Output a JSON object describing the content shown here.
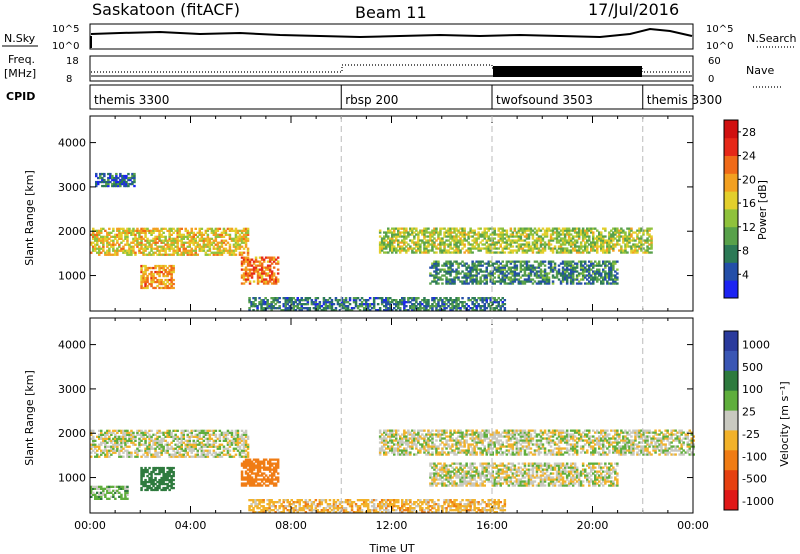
{
  "header": {
    "radar": "Saskatoon (fitACF)",
    "beam": "Beam 11",
    "date": "17/Jul/2016"
  },
  "noise_panel": {
    "left_label": "N.Sky",
    "left_ticks": [
      "10^5",
      "10^0"
    ],
    "right_ticks": [
      "10^5",
      "10^0"
    ],
    "right_label": "N.Search"
  },
  "freq_panel": {
    "left_label_1": "Freq.",
    "left_label_2": "[MHz]",
    "left_ticks": [
      "18",
      "8"
    ],
    "right_ticks": [
      "60",
      "0"
    ],
    "right_label": "Nave"
  },
  "cpid": {
    "label": "CPID",
    "modes": [
      {
        "name": "themis 3300",
        "start_hour": 0
      },
      {
        "name": "rbsp 200",
        "start_hour": 10
      },
      {
        "name": "twofsound 3503",
        "start_hour": 16
      },
      {
        "name": "themis 3300",
        "start_hour": 22
      }
    ]
  },
  "colors": {
    "velocity_scale": [
      "#2a3a9c",
      "#3a56b4",
      "#2e7a3e",
      "#5fae3c",
      "#c9c9c0",
      "#f2b22a",
      "#f07c14",
      "#e64010",
      "#e01818"
    ]
  },
  "chart_data": [
    {
      "type": "heatmap",
      "title": "",
      "xlabel": "",
      "ylabel": "Slant Range [km]",
      "xlim": [
        0,
        24
      ],
      "ylim": [
        200,
        4600
      ],
      "y_ticks": [
        "1000",
        "2000",
        "3000",
        "4000"
      ],
      "colorbar": {
        "label": "Power [dB]",
        "ticks": [
          "4",
          "8",
          "12",
          "16",
          "20",
          "24",
          "28"
        ],
        "range": [
          0,
          30
        ],
        "colors": [
          "#1c23f2",
          "#244fa8",
          "#2c7a56",
          "#58a14a",
          "#8fc23c",
          "#e3cf2c",
          "#f3a020",
          "#f06a18",
          "#e62818",
          "#d01010"
        ]
      },
      "regions": [
        {
          "t0": 0.0,
          "t1": 6.3,
          "r0": 1450,
          "r1": 2050,
          "power": 17
        },
        {
          "t0": 6.0,
          "t1": 7.5,
          "r0": 800,
          "r1": 1400,
          "power": 22
        },
        {
          "t0": 2.0,
          "t1": 3.3,
          "r0": 700,
          "r1": 1200,
          "power": 20
        },
        {
          "t0": 0.2,
          "t1": 1.8,
          "r0": 3000,
          "r1": 3300,
          "power": 6
        },
        {
          "t0": 11.5,
          "t1": 22.3,
          "r0": 1500,
          "r1": 2050,
          "power": 14
        },
        {
          "t0": 13.5,
          "t1": 21.0,
          "r0": 800,
          "r1": 1300,
          "power": 8
        },
        {
          "t0": 6.3,
          "t1": 16.5,
          "r0": 200,
          "r1": 500,
          "power": 7
        }
      ]
    },
    {
      "type": "heatmap",
      "title": "",
      "xlabel": "Time UT",
      "ylabel": "Slant Range [km]",
      "xlim": [
        0,
        24
      ],
      "ylim": [
        200,
        4600
      ],
      "x_ticks": [
        "00:00",
        "04:00",
        "08:00",
        "12:00",
        "16:00",
        "20:00",
        "00:00"
      ],
      "y_ticks": [
        "1000",
        "2000",
        "3000",
        "4000"
      ],
      "colorbar": {
        "label": "Velocity [m s⁻¹]",
        "ticks": [
          "1000",
          "500",
          "100",
          "25",
          "-25",
          "-100",
          "-500",
          "-1000"
        ],
        "range": [
          -1000,
          1000
        ]
      },
      "regions": [
        {
          "t0": 0.0,
          "t1": 6.3,
          "r0": 1450,
          "r1": 2050,
          "velocity": 0
        },
        {
          "t0": 2.0,
          "t1": 3.3,
          "r0": 700,
          "r1": 1200,
          "velocity": 200
        },
        {
          "t0": 6.0,
          "t1": 7.5,
          "r0": 800,
          "r1": 1400,
          "velocity": -300
        },
        {
          "t0": 11.5,
          "t1": 24.0,
          "r0": 1500,
          "r1": 2050,
          "velocity": 0
        },
        {
          "t0": 13.5,
          "t1": 21.0,
          "r0": 800,
          "r1": 1300,
          "velocity": 0
        },
        {
          "t0": 6.3,
          "t1": 16.5,
          "r0": 200,
          "r1": 500,
          "velocity": -60
        },
        {
          "t0": 0.0,
          "t1": 1.5,
          "r0": 500,
          "r1": 800,
          "velocity": 60
        }
      ]
    }
  ]
}
